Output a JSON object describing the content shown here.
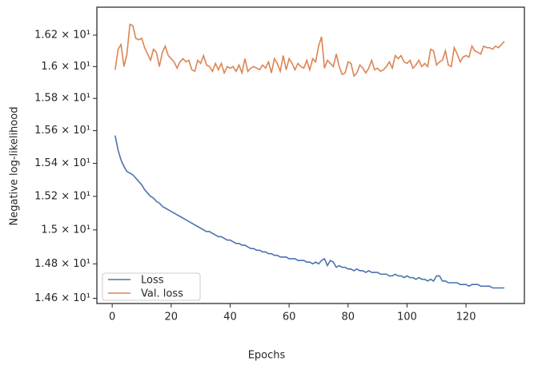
{
  "chart_data": {
    "type": "line",
    "xlabel": "Epochs",
    "ylabel": "Negative log-likelihood",
    "xlim": [
      -5.2,
      139.8
    ],
    "ylim": [
      14.57,
      16.38
    ],
    "ylog": true,
    "xticks": [
      0,
      20,
      40,
      60,
      80,
      100,
      120
    ],
    "yticks": [
      {
        "value": 14.6,
        "label": "1.46 × 10¹"
      },
      {
        "value": 14.8,
        "label": "1.48 × 10¹"
      },
      {
        "value": 15.0,
        "label": "1.5 × 10¹"
      },
      {
        "value": 15.2,
        "label": "1.52 × 10¹"
      },
      {
        "value": 15.4,
        "label": "1.54 × 10¹"
      },
      {
        "value": 15.6,
        "label": "1.56 × 10¹"
      },
      {
        "value": 15.8,
        "label": "1.58 × 10¹"
      },
      {
        "value": 16.0,
        "label": "1.6 × 10¹"
      },
      {
        "value": 16.2,
        "label": "1.62 × 10¹"
      }
    ],
    "grid": false,
    "legend": "lower left",
    "x": [
      1,
      2,
      3,
      4,
      5,
      6,
      7,
      8,
      9,
      10,
      11,
      12,
      13,
      14,
      15,
      16,
      17,
      18,
      19,
      20,
      21,
      22,
      23,
      24,
      25,
      26,
      27,
      28,
      29,
      30,
      31,
      32,
      33,
      34,
      35,
      36,
      37,
      38,
      39,
      40,
      41,
      42,
      43,
      44,
      45,
      46,
      47,
      48,
      49,
      50,
      51,
      52,
      53,
      54,
      55,
      56,
      57,
      58,
      59,
      60,
      61,
      62,
      63,
      64,
      65,
      66,
      67,
      68,
      69,
      70,
      71,
      72,
      73,
      74,
      75,
      76,
      77,
      78,
      79,
      80,
      81,
      82,
      83,
      84,
      85,
      86,
      87,
      88,
      89,
      90,
      91,
      92,
      93,
      94,
      95,
      96,
      97,
      98,
      99,
      100,
      101,
      102,
      103,
      104,
      105,
      106,
      107,
      108,
      109,
      110,
      111,
      112,
      113,
      114,
      115,
      116,
      117,
      118,
      119,
      120,
      121,
      122,
      123,
      124,
      125,
      126,
      127,
      128,
      129,
      130,
      131,
      132,
      133
    ],
    "series": [
      {
        "name": "Loss",
        "color": "#4c72b0",
        "values": [
          15.57,
          15.48,
          15.42,
          15.38,
          15.35,
          15.34,
          15.33,
          15.31,
          15.29,
          15.27,
          15.24,
          15.22,
          15.2,
          15.19,
          15.17,
          15.16,
          15.14,
          15.13,
          15.12,
          15.11,
          15.1,
          15.09,
          15.08,
          15.07,
          15.06,
          15.05,
          15.04,
          15.03,
          15.02,
          15.01,
          15.0,
          14.99,
          14.99,
          14.98,
          14.97,
          14.96,
          14.96,
          14.95,
          14.94,
          14.94,
          14.93,
          14.92,
          14.92,
          14.91,
          14.91,
          14.9,
          14.89,
          14.89,
          14.88,
          14.88,
          14.87,
          14.87,
          14.86,
          14.86,
          14.85,
          14.85,
          14.84,
          14.84,
          14.84,
          14.83,
          14.83,
          14.83,
          14.82,
          14.82,
          14.82,
          14.81,
          14.81,
          14.8,
          14.81,
          14.8,
          14.82,
          14.83,
          14.79,
          14.82,
          14.81,
          14.78,
          14.79,
          14.78,
          14.78,
          14.77,
          14.77,
          14.76,
          14.77,
          14.76,
          14.76,
          14.75,
          14.76,
          14.75,
          14.75,
          14.75,
          14.74,
          14.74,
          14.74,
          14.73,
          14.73,
          14.74,
          14.73,
          14.73,
          14.72,
          14.73,
          14.72,
          14.72,
          14.71,
          14.72,
          14.71,
          14.71,
          14.7,
          14.71,
          14.7,
          14.73,
          14.73,
          14.7,
          14.7,
          14.69,
          14.69,
          14.69,
          14.69,
          14.68,
          14.68,
          14.68,
          14.67,
          14.68,
          14.68,
          14.68,
          14.67,
          14.67,
          14.67,
          14.67,
          14.66,
          14.66,
          14.66,
          14.66,
          14.66
        ]
      },
      {
        "name": "Val. loss",
        "color": "#dd8452",
        "values": [
          15.98,
          16.11,
          16.14,
          16.0,
          16.08,
          16.27,
          16.26,
          16.18,
          16.17,
          16.18,
          16.12,
          16.08,
          16.04,
          16.11,
          16.09,
          16.0,
          16.09,
          16.13,
          16.07,
          16.05,
          16.03,
          15.99,
          16.03,
          16.05,
          16.03,
          16.04,
          15.98,
          15.97,
          16.04,
          16.02,
          16.07,
          16.01,
          16.0,
          15.97,
          16.02,
          15.98,
          16.02,
          15.96,
          16.0,
          15.99,
          16.0,
          15.97,
          16.01,
          15.96,
          16.05,
          15.97,
          15.99,
          16.0,
          15.99,
          15.98,
          16.01,
          15.99,
          16.03,
          15.96,
          16.05,
          16.02,
          15.97,
          16.07,
          15.98,
          16.05,
          16.02,
          15.98,
          16.02,
          16.0,
          15.99,
          16.04,
          15.98,
          16.05,
          16.03,
          16.13,
          16.19,
          15.99,
          16.04,
          16.02,
          16.0,
          16.08,
          16.0,
          15.95,
          15.96,
          16.03,
          16.02,
          15.94,
          15.96,
          16.01,
          15.99,
          15.96,
          15.99,
          16.04,
          15.98,
          15.99,
          15.97,
          15.98,
          16.0,
          16.03,
          15.99,
          16.07,
          16.05,
          16.07,
          16.03,
          16.02,
          16.04,
          15.99,
          16.01,
          16.04,
          16.0,
          16.02,
          16.0,
          16.11,
          16.1,
          16.01,
          16.03,
          16.04,
          16.1,
          16.01,
          16.0,
          16.12,
          16.08,
          16.03,
          16.06,
          16.07,
          16.06,
          16.13,
          16.1,
          16.09,
          16.08,
          16.13,
          16.12,
          16.12,
          16.11,
          16.13,
          16.12,
          16.14,
          16.16
        ]
      }
    ]
  }
}
